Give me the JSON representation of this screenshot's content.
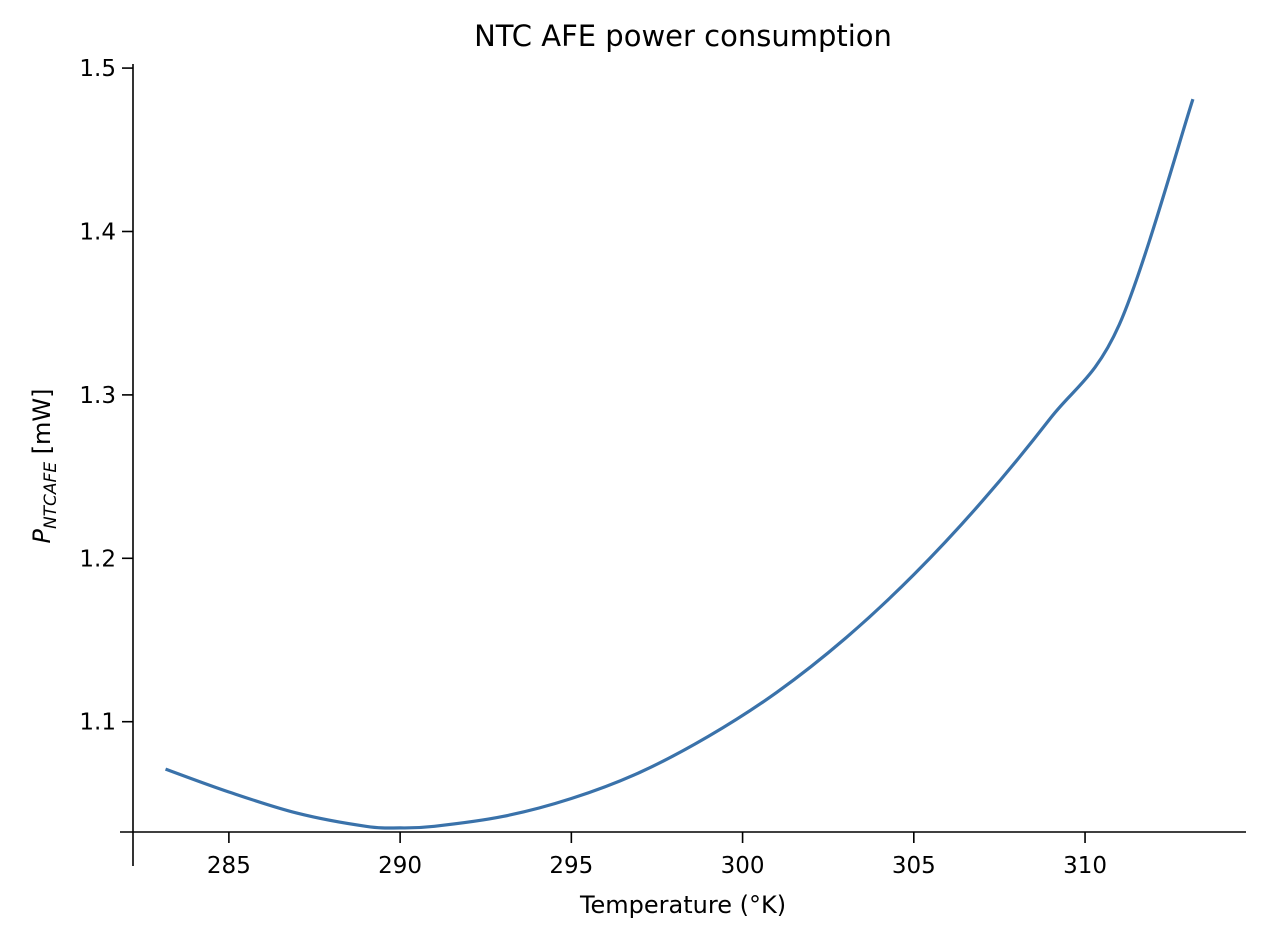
{
  "chart_data": {
    "type": "line",
    "title": "NTC AFE power consumption",
    "xlabel": "Temperature (°K)",
    "ylabel": {
      "base": "P",
      "subscript": "NTCAFE",
      "unit": " [mW]"
    },
    "xlim": [
      282.2,
      314.7
    ],
    "ylim": [
      1.0325,
      1.5025
    ],
    "x_ticks": [
      285,
      290,
      295,
      300,
      305,
      310
    ],
    "x_tick_labels": [
      "285",
      "290",
      "295",
      "300",
      "305",
      "310"
    ],
    "y_ticks": [
      1.1,
      1.2,
      1.3,
      1.4,
      1.5
    ],
    "y_tick_labels": [
      "1.1",
      "1.2",
      "1.3",
      "1.4",
      "1.5"
    ],
    "grid": false,
    "series": [
      {
        "color": "#3a72aa",
        "x": [
          283.15,
          285,
          287,
          289,
          290,
          291,
          293,
          295,
          297,
          299,
          301,
          303,
          305,
          307,
          309,
          311,
          313.15
        ],
        "y": [
          1.071,
          1.057,
          1.044,
          1.036,
          1.035,
          1.036,
          1.042,
          1.053,
          1.069,
          1.091,
          1.118,
          1.151,
          1.19,
          1.235,
          1.286,
          1.343,
          1.481
        ]
      }
    ]
  }
}
